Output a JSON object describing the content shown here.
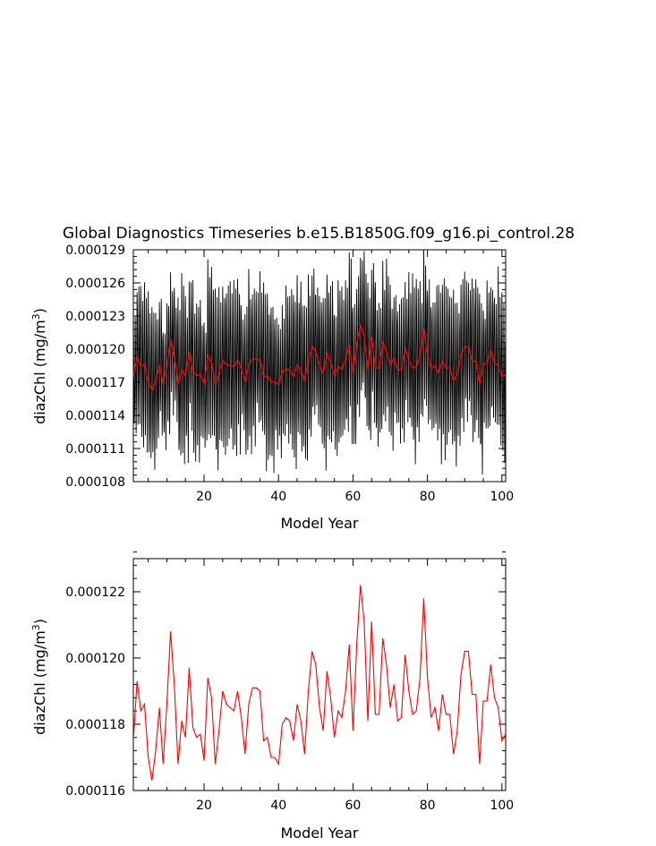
{
  "chart_data": [
    {
      "type": "line",
      "title": "Global Diagnostics Timeseries b.e15.B1850G.f09_g16.pi_control.28",
      "xlabel": "Model Year",
      "ylabel_main": "diazChl (mg/m",
      "ylabel_sup": "3",
      "ylabel_close": ")",
      "xlim": [
        1,
        101
      ],
      "ylim": [
        0.000108,
        0.000129
      ],
      "xticks": [
        20,
        40,
        60,
        80,
        100
      ],
      "xtick_labels": [
        "20",
        "40",
        "60",
        "80",
        "100"
      ],
      "yticks": [
        0.000108,
        0.000111,
        0.000114,
        0.000117,
        0.00012,
        0.000123,
        0.000126,
        0.000129
      ],
      "ytick_labels": [
        "0.000108",
        "0.000111",
        "0.000114",
        "0.000117",
        "0.000120",
        "0.000123",
        "0.000126",
        "0.000129"
      ],
      "grid": false,
      "legend": "none",
      "series": [
        {
          "color": "#000000",
          "kind": "monthly",
          "note_values_from_annual_with_seasonal_amplitude": true,
          "amplitude_y": [
            5.5e-06,
            8e-06
          ],
          "values": []
        },
        {
          "color": "#ff0000",
          "kind": "annual",
          "values": []
        }
      ]
    },
    {
      "type": "line",
      "title": "",
      "xlabel": "Model Year",
      "ylabel_main": "diazChl (mg/m",
      "ylabel_sup": "3",
      "ylabel_close": ")",
      "xlim": [
        1,
        101
      ],
      "ylim": [
        0.000116,
        0.000123
      ],
      "xticks": [
        20,
        40,
        60,
        80,
        100
      ],
      "xtick_labels": [
        "20",
        "40",
        "60",
        "80",
        "100"
      ],
      "yticks": [
        0.000116,
        0.000118,
        0.00012,
        0.000122
      ],
      "ytick_labels": [
        "0.000116",
        "0.000118",
        "0.000120",
        "0.000122"
      ],
      "grid": false,
      "legend": "none",
      "series": [
        {
          "color": "#ff0000",
          "x": [
            1,
            2,
            3,
            4,
            5,
            6,
            7,
            8,
            9,
            10,
            11,
            12,
            13,
            14,
            15,
            16,
            17,
            18,
            19,
            20,
            21,
            22,
            23,
            24,
            25,
            26,
            27,
            28,
            29,
            30,
            31,
            32,
            33,
            34,
            35,
            36,
            37,
            38,
            39,
            40,
            41,
            42,
            43,
            44,
            45,
            46,
            47,
            48,
            49,
            50,
            51,
            52,
            53,
            54,
            55,
            56,
            57,
            58,
            59,
            60,
            61,
            62,
            63,
            64,
            65,
            66,
            67,
            68,
            69,
            70,
            71,
            72,
            73,
            74,
            75,
            76,
            77,
            78,
            79,
            80,
            81,
            82,
            83,
            84,
            85,
            86,
            87,
            88,
            89,
            90,
            91,
            92,
            93,
            94,
            95,
            96,
            97,
            98,
            99,
            100,
            101
          ],
          "values": [
            0.0001175,
            0.0001193,
            0.0001184,
            0.0001186,
            0.000117,
            0.0001163,
            0.0001172,
            0.0001185,
            0.0001168,
            0.0001186,
            0.0001208,
            0.0001192,
            0.0001168,
            0.0001181,
            0.0001176,
            0.0001197,
            0.0001179,
            0.0001176,
            0.0001177,
            0.0001169,
            0.0001194,
            0.0001188,
            0.0001168,
            0.0001178,
            0.000119,
            0.0001186,
            0.0001185,
            0.0001184,
            0.000119,
            0.0001182,
            0.0001171,
            0.0001186,
            0.0001191,
            0.0001191,
            0.000119,
            0.0001175,
            0.0001176,
            0.000117,
            0.000117,
            0.0001168,
            0.000118,
            0.0001182,
            0.0001181,
            0.0001175,
            0.0001186,
            0.0001181,
            0.0001171,
            0.000119,
            0.0001202,
            0.0001198,
            0.0001185,
            0.0001178,
            0.0001196,
            0.0001188,
            0.0001176,
            0.0001184,
            0.0001182,
            0.000119,
            0.0001204,
            0.0001178,
            0.0001204,
            0.0001222,
            0.0001211,
            0.0001181,
            0.0001211,
            0.0001183,
            0.0001183,
            0.0001206,
            0.0001198,
            0.0001185,
            0.0001192,
            0.0001181,
            0.0001182,
            0.0001201,
            0.000119,
            0.0001183,
            0.0001184,
            0.0001194,
            0.0001218,
            0.0001194,
            0.0001182,
            0.0001185,
            0.0001178,
            0.0001189,
            0.0001183,
            0.0001183,
            0.0001171,
            0.0001178,
            0.0001195,
            0.0001202,
            0.0001202,
            0.0001189,
            0.0001189,
            0.0001168,
            0.0001187,
            0.0001187,
            0.0001198,
            0.0001188,
            0.0001185,
            0.0001175,
            0.0001177
          ]
        }
      ]
    }
  ]
}
